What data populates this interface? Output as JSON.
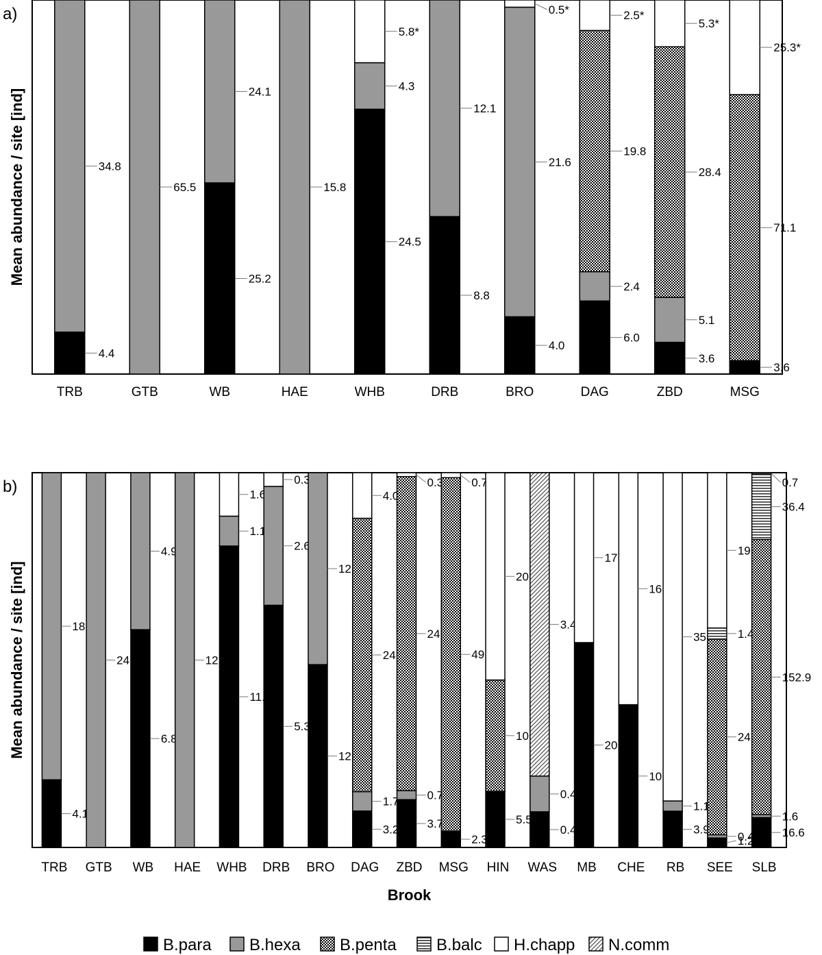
{
  "chart_data": [
    {
      "type": "bar",
      "panel": "a)",
      "stacked": "percent",
      "ylabel": "Mean abundance / site [ind]",
      "xlabel": "",
      "categories": [
        "TRB",
        "GTB",
        "WB",
        "HAE",
        "WHB",
        "DRB",
        "BRO",
        "DAG",
        "ZBD",
        "MSG"
      ],
      "series": [
        {
          "name": "B.para",
          "values": [
            4.4,
            0,
            25.2,
            0,
            24.5,
            8.8,
            4.0,
            6.0,
            3.6,
            3.6
          ]
        },
        {
          "name": "B.hexa",
          "values": [
            34.8,
            65.5,
            24.1,
            15.8,
            4.3,
            12.1,
            21.6,
            2.4,
            5.1,
            0
          ]
        },
        {
          "name": "B.penta",
          "values": [
            0,
            0,
            0,
            0,
            0,
            0,
            0,
            19.8,
            28.4,
            71.1
          ]
        },
        {
          "name": "B.balc",
          "values": [
            0,
            0,
            0,
            0,
            0,
            0,
            0,
            0,
            0,
            0
          ]
        },
        {
          "name": "H.chapp",
          "values": [
            0,
            0,
            0,
            0,
            5.8,
            0,
            0.5,
            2.5,
            5.3,
            25.3
          ]
        },
        {
          "name": "N.comm",
          "values": [
            0,
            0,
            0,
            0,
            0,
            0,
            0,
            0,
            0,
            0
          ]
        }
      ],
      "labels": [
        [
          {
            "s": 0,
            "t": "4.4"
          },
          {
            "s": 1,
            "t": "34.8"
          }
        ],
        [
          {
            "s": 1,
            "t": "65.5"
          }
        ],
        [
          {
            "s": 0,
            "t": "25.2"
          },
          {
            "s": 1,
            "t": "24.1"
          }
        ],
        [
          {
            "s": 1,
            "t": "15.8"
          }
        ],
        [
          {
            "s": 0,
            "t": "24.5"
          },
          {
            "s": 1,
            "t": "4.3"
          },
          {
            "s": 4,
            "t": "5.8*"
          }
        ],
        [
          {
            "s": 0,
            "t": "8.8"
          },
          {
            "s": 1,
            "t": "12.1"
          }
        ],
        [
          {
            "s": 0,
            "t": "4.0"
          },
          {
            "s": 1,
            "t": "21.6"
          },
          {
            "s": 4,
            "t": "0.5*"
          }
        ],
        [
          {
            "s": 0,
            "t": "6.0"
          },
          {
            "s": 1,
            "t": "2.4"
          },
          {
            "s": 2,
            "t": "19.8"
          },
          {
            "s": 4,
            "t": "2.5*"
          }
        ],
        [
          {
            "s": 0,
            "t": "3.6"
          },
          {
            "s": 1,
            "t": "5.1"
          },
          {
            "s": 2,
            "t": "28.4"
          },
          {
            "s": 4,
            "t": "5.3*"
          }
        ],
        [
          {
            "s": 0,
            "t": "3.6"
          },
          {
            "s": 2,
            "t": "71.1"
          },
          {
            "s": 4,
            "t": "25.3*"
          }
        ]
      ]
    },
    {
      "type": "bar",
      "panel": "b)",
      "stacked": "percent",
      "ylabel": "Mean abundance / site [ind]",
      "xlabel": "Brook",
      "categories": [
        "TRB",
        "GTB",
        "WB",
        "HAE",
        "WHB",
        "DRB",
        "BRO",
        "DAG",
        "ZBD",
        "MSG",
        "HIN",
        "WAS",
        "MB",
        "CHE",
        "RB",
        "SEE",
        "SLB"
      ],
      "series": [
        {
          "name": "B.para",
          "values": [
            4.1,
            0,
            6.8,
            0,
            11.1,
            5.3,
            12.1,
            3.2,
            3.7,
            2.3,
            5.5,
            0.4,
            20.5,
            10.4,
            3.9,
            1.2,
            16.6
          ]
        },
        {
          "name": "B.hexa",
          "values": [
            18.6,
            24.8,
            4.9,
            12.1,
            1.1,
            2.6,
            12.7,
            1.7,
            0.7,
            0,
            0,
            0.4,
            0,
            0,
            1.1,
            0.4,
            1.6
          ]
        },
        {
          "name": "B.penta",
          "values": [
            0,
            0,
            0,
            0,
            0,
            0,
            0,
            24.0,
            24.3,
            49.7,
            10.9,
            0,
            0,
            0,
            0,
            24.7,
            152.9
          ]
        },
        {
          "name": "B.balc",
          "values": [
            0,
            0,
            0,
            0,
            0,
            0,
            0,
            0,
            0,
            0,
            0,
            0,
            0,
            0,
            0,
            1.4,
            36.4
          ]
        },
        {
          "name": "H.chapp",
          "values": [
            0,
            0,
            0,
            0,
            1.6,
            0.3,
            0,
            4.0,
            0.3,
            0.7,
            20.3,
            0,
            17.0,
            16.9,
            35.3,
            19.6,
            0.7
          ]
        },
        {
          "name": "N.comm",
          "values": [
            0,
            0,
            0,
            0,
            0,
            0,
            0,
            0,
            0,
            0,
            0,
            3.4,
            0,
            0,
            0,
            0,
            0
          ]
        }
      ],
      "labels": [
        [
          {
            "s": 0,
            "t": "4.1"
          },
          {
            "s": 1,
            "t": "18.6"
          }
        ],
        [
          {
            "s": 1,
            "t": "24.8"
          }
        ],
        [
          {
            "s": 0,
            "t": "6.8"
          },
          {
            "s": 1,
            "t": "4.9"
          }
        ],
        [
          {
            "s": 1,
            "t": "12.1"
          }
        ],
        [
          {
            "s": 0,
            "t": "11.1"
          },
          {
            "s": 1,
            "t": "1.1"
          },
          {
            "s": 4,
            "t": "1.6"
          }
        ],
        [
          {
            "s": 0,
            "t": "5.3"
          },
          {
            "s": 1,
            "t": "2.6"
          },
          {
            "s": 4,
            "t": "0.3"
          }
        ],
        [
          {
            "s": 0,
            "t": "12.1"
          },
          {
            "s": 1,
            "t": "12.7"
          }
        ],
        [
          {
            "s": 0,
            "t": "3.2"
          },
          {
            "s": 1,
            "t": "1.7"
          },
          {
            "s": 2,
            "t": "24.0"
          },
          {
            "s": 4,
            "t": "4.0"
          }
        ],
        [
          {
            "s": 0,
            "t": "3.7"
          },
          {
            "s": 1,
            "t": "0.7"
          },
          {
            "s": 2,
            "t": "24.3"
          },
          {
            "s": 4,
            "t": "0.3"
          }
        ],
        [
          {
            "s": 0,
            "t": "2.3"
          },
          {
            "s": 2,
            "t": "49.7"
          },
          {
            "s": 4,
            "t": "0.7"
          }
        ],
        [
          {
            "s": 0,
            "t": "5.5"
          },
          {
            "s": 2,
            "t": "10.9"
          },
          {
            "s": 4,
            "t": "20.3"
          }
        ],
        [
          {
            "s": 0,
            "t": "0.4"
          },
          {
            "s": 1,
            "t": "0.4"
          },
          {
            "s": 5,
            "t": "3.4"
          }
        ],
        [
          {
            "s": 0,
            "t": "20.5"
          },
          {
            "s": 4,
            "t": "17.0"
          }
        ],
        [
          {
            "s": 0,
            "t": "10.4"
          },
          {
            "s": 4,
            "t": "16.9"
          }
        ],
        [
          {
            "s": 0,
            "t": "3.9"
          },
          {
            "s": 1,
            "t": "1.1"
          },
          {
            "s": 4,
            "t": "35.3"
          }
        ],
        [
          {
            "s": 0,
            "t": "1.2"
          },
          {
            "s": 1,
            "t": "0.4"
          },
          {
            "s": 2,
            "t": "24.7"
          },
          {
            "s": 3,
            "t": "1.4"
          },
          {
            "s": 4,
            "t": "19.6"
          }
        ],
        [
          {
            "s": 0,
            "t": "16.6"
          },
          {
            "s": 1,
            "t": "1.6"
          },
          {
            "s": 2,
            "t": "152.9"
          },
          {
            "s": 3,
            "t": "36.4"
          },
          {
            "s": 4,
            "t": "0.7"
          }
        ]
      ]
    }
  ],
  "legend": {
    "placement": "bottom",
    "items": [
      "B.para",
      "B.hexa",
      "B.penta",
      "B.balc",
      "H.chapp",
      "N.comm"
    ]
  },
  "colors": {
    "B.para": "#000000",
    "B.hexa": "#999999",
    "B.penta": "pattern-dots",
    "B.balc": "pattern-hlines",
    "H.chapp": "#ffffff",
    "N.comm": "pattern-diagonal"
  }
}
